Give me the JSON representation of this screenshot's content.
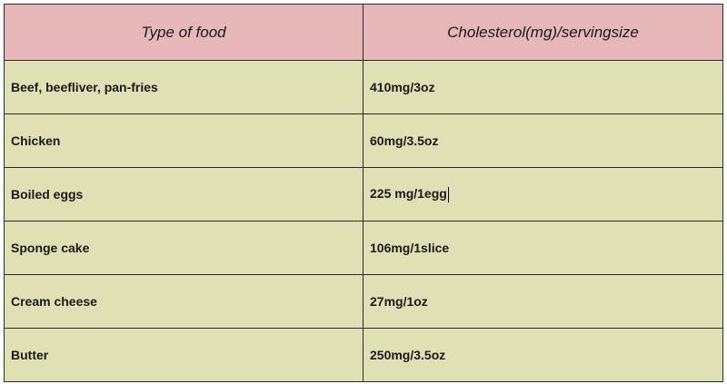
{
  "table": {
    "headers": [
      "Type of food",
      "Cholesterol(mg)/servingsize"
    ],
    "rows": [
      {
        "food": "Beef, beefliver, pan-fries",
        "cholesterol": "410mg/3oz"
      },
      {
        "food": "Chicken",
        "cholesterol": "60mg/3.5oz"
      },
      {
        "food": "Boiled eggs",
        "cholesterol": "225 mg/1egg"
      },
      {
        "food": "Sponge cake",
        "cholesterol": "106mg/1slice"
      },
      {
        "food": "Cream cheese",
        "cholesterol": "27mg/1oz"
      },
      {
        "food": "Butter",
        "cholesterol": "250mg/3.5oz"
      }
    ]
  },
  "colors": {
    "header_bg": "#e6b8b7",
    "body_bg": "#dfe0b4",
    "border": "#2b2b2b"
  }
}
